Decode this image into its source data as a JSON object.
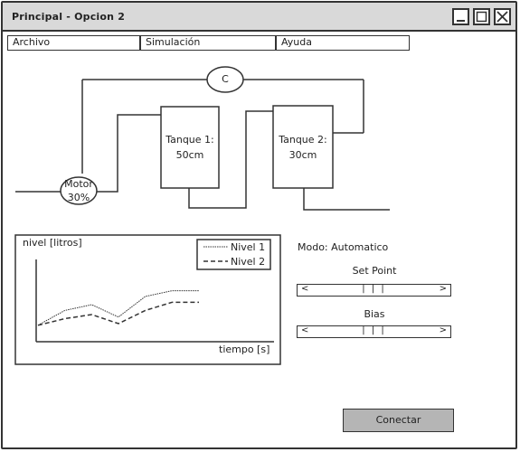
{
  "window": {
    "title": "Principal - Opcion 2"
  },
  "menu": [
    {
      "label": "Archivo"
    },
    {
      "label": "Simulación"
    },
    {
      "label": "Ayuda"
    }
  ],
  "process": {
    "controller_label": "C",
    "motor_label": "Motor\n30%",
    "tank1_label": "Tanque 1:\n50cm",
    "tank2_label": "Tanque 2:\n30cm"
  },
  "chart_data": {
    "type": "line",
    "ylabel": "nivel [litros]",
    "xlabel": "tiempo [s]",
    "grid": false,
    "legend_placement": "top-right",
    "x": [
      0,
      1,
      2,
      3,
      4,
      5,
      6
    ],
    "series": [
      {
        "name": "Nivel 1",
        "style": "dotted",
        "values": [
          0.2,
          0.38,
          0.45,
          0.3,
          0.55,
          0.62,
          0.62
        ]
      },
      {
        "name": "Nivel 2",
        "style": "dashed",
        "values": [
          0.2,
          0.28,
          0.33,
          0.22,
          0.38,
          0.48,
          0.48
        ]
      }
    ]
  },
  "controls": {
    "mode_label": "Modo: Automatico",
    "setpoint_label": "Set Point",
    "bias_label": "Bias",
    "connect_button": "Conectar"
  },
  "colors": {
    "titlebar": "#d9d9d9",
    "button": "#b5b5b5",
    "line": "#333333"
  }
}
